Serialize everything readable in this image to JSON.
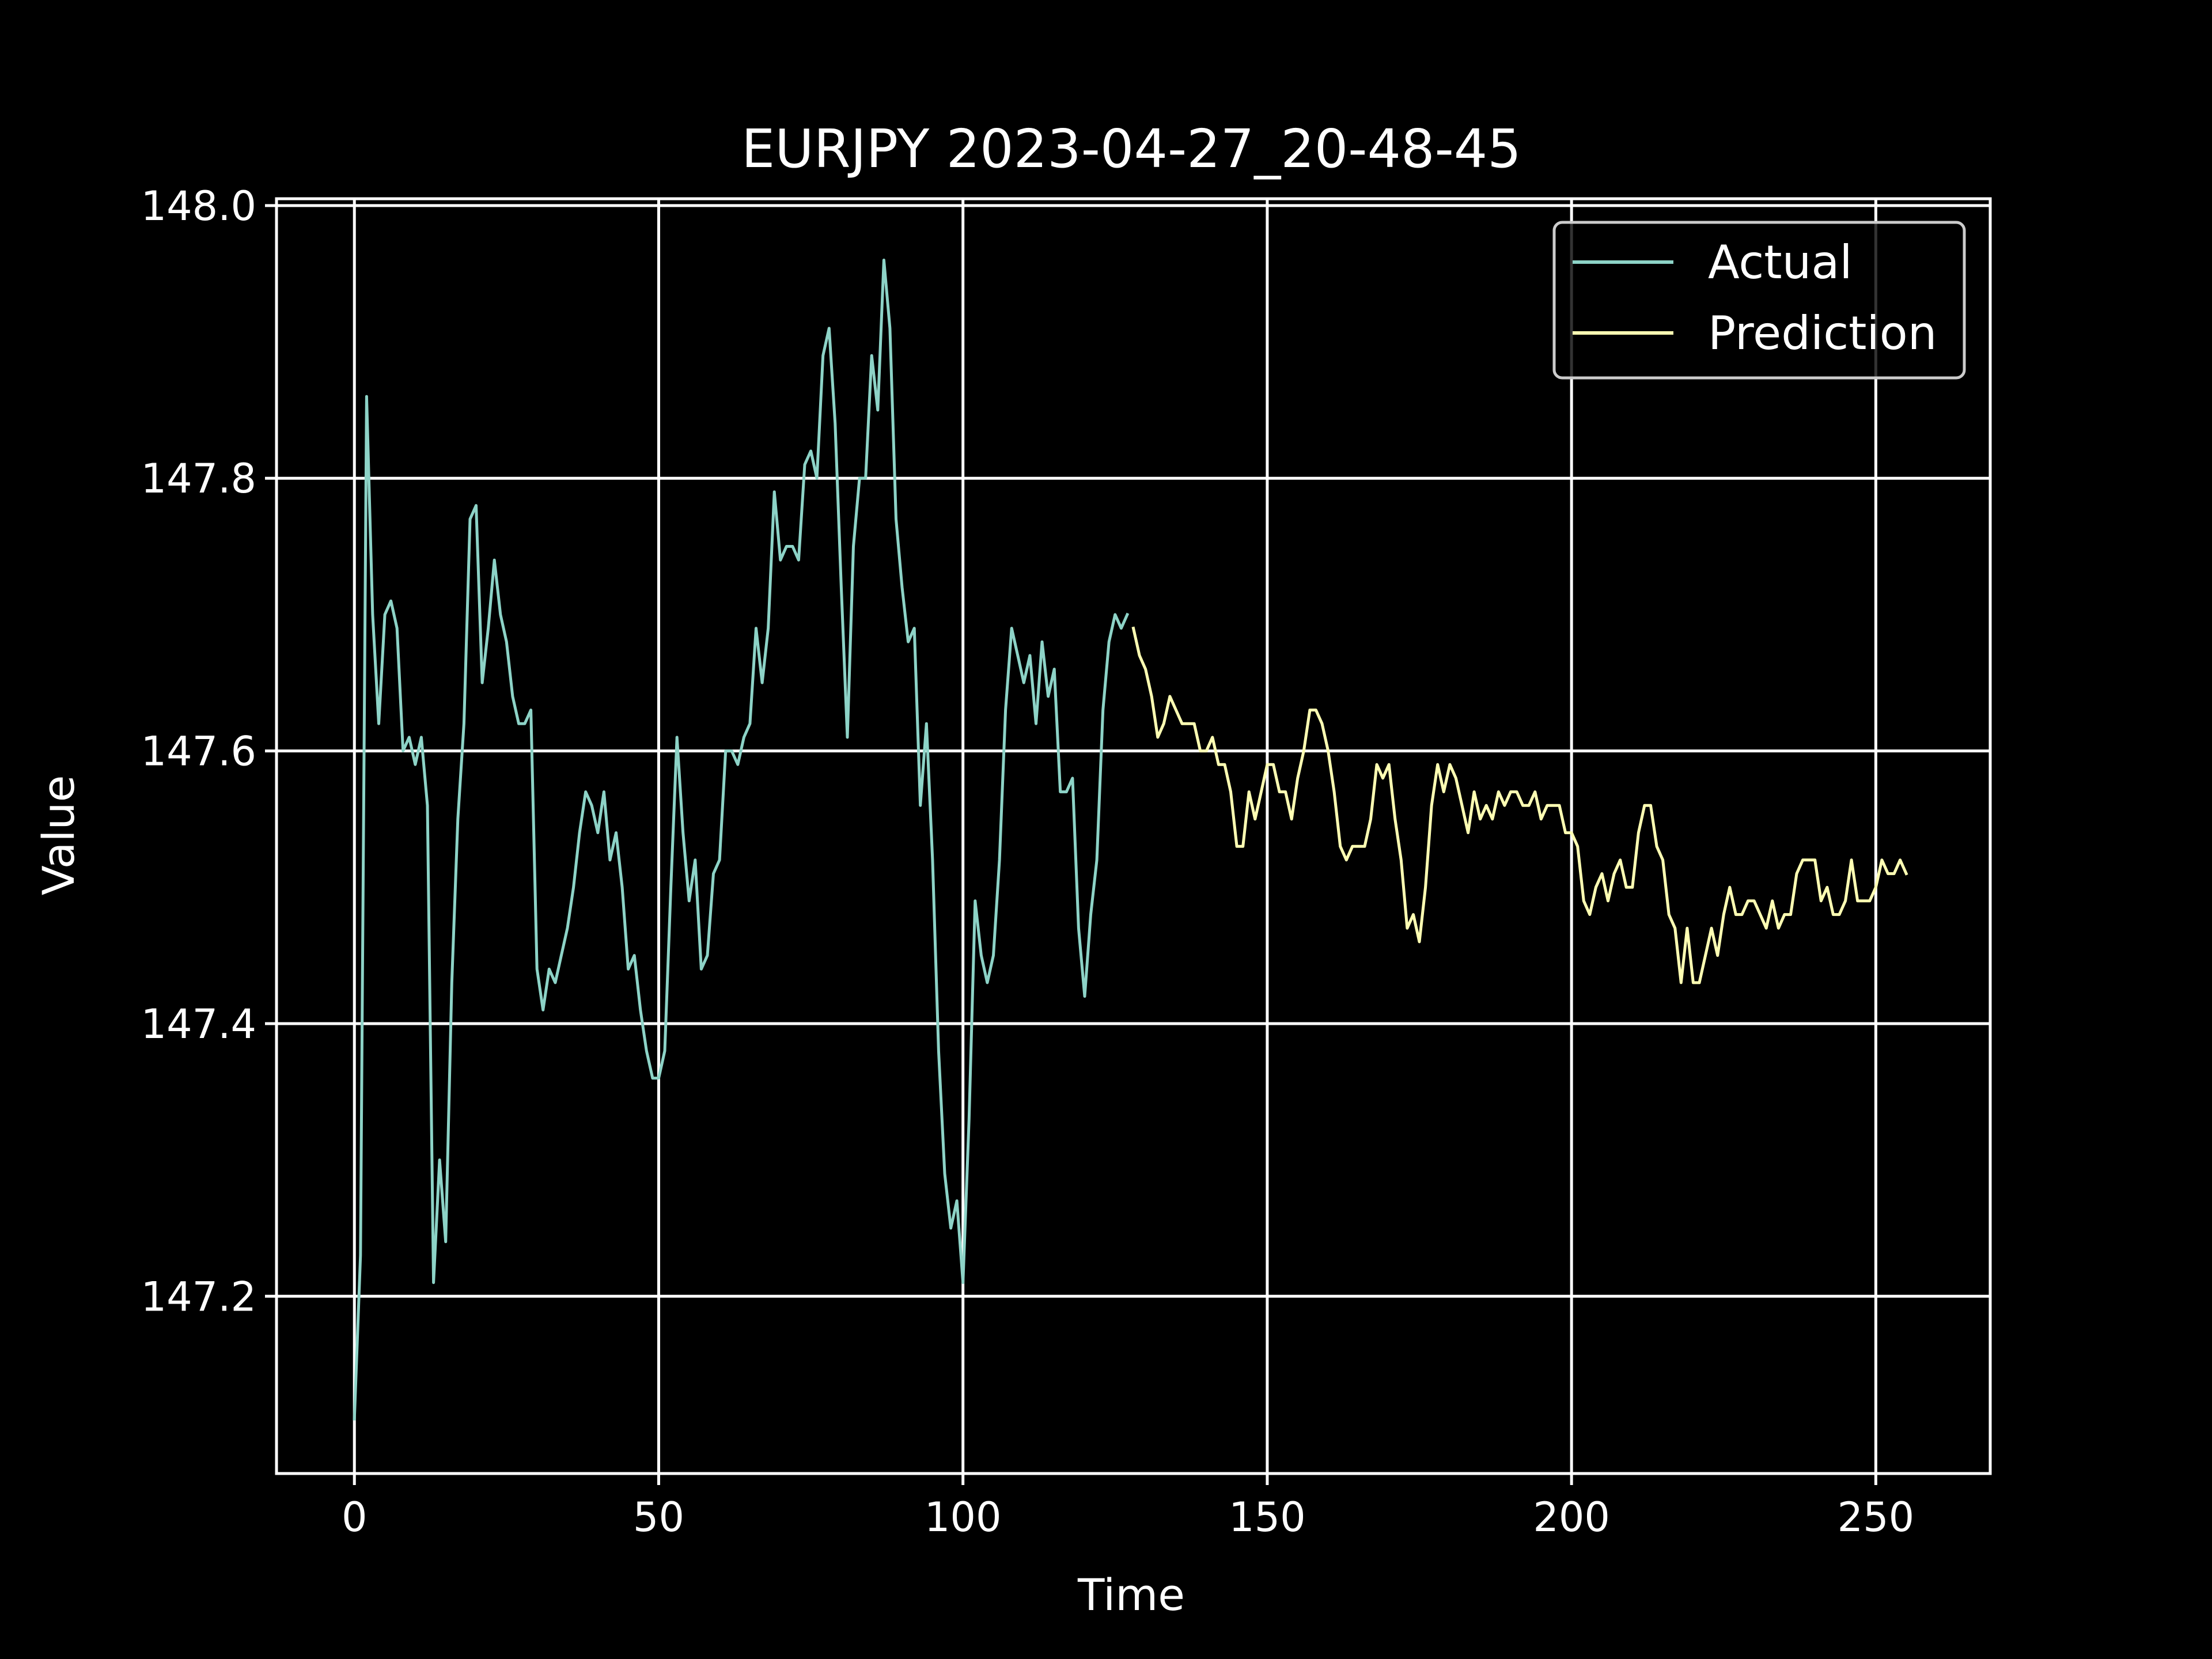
{
  "chart_data": {
    "type": "line",
    "title": "EURJPY 2023-04-27_20-48-45",
    "xlabel": "Time",
    "ylabel": "Value",
    "xlim": [
      -12.8,
      268.8
    ],
    "ylim": [
      147.07,
      148.005
    ],
    "xticks": [
      0,
      50,
      100,
      150,
      200,
      250
    ],
    "xtick_labels": [
      "0",
      "50",
      "100",
      "150",
      "200",
      "250"
    ],
    "yticks": [
      147.2,
      147.4,
      147.6,
      147.8,
      148.0
    ],
    "ytick_labels": [
      "147.2",
      "147.4",
      "147.6",
      "147.8",
      "148.0"
    ],
    "grid": true,
    "legend": "top-right",
    "colors": {
      "background": "#000000",
      "foreground": "#ffffff",
      "legend_background": "#000000",
      "legend_border": "#cccccc"
    },
    "series": [
      {
        "name": "Actual",
        "color": "#8dd3c7",
        "x_start": 0,
        "values": [
          147.11,
          147.23,
          147.86,
          147.7,
          147.62,
          147.7,
          147.71,
          147.69,
          147.6,
          147.61,
          147.59,
          147.61,
          147.56,
          147.21,
          147.3,
          147.24,
          147.43,
          147.55,
          147.62,
          147.77,
          147.78,
          147.65,
          147.69,
          147.74,
          147.7,
          147.68,
          147.64,
          147.62,
          147.62,
          147.63,
          147.44,
          147.41,
          147.44,
          147.43,
          147.45,
          147.47,
          147.5,
          147.54,
          147.57,
          147.56,
          147.54,
          147.57,
          147.52,
          147.54,
          147.5,
          147.44,
          147.45,
          147.41,
          147.38,
          147.36,
          147.36,
          147.38,
          147.5,
          147.61,
          147.54,
          147.49,
          147.52,
          147.44,
          147.45,
          147.51,
          147.52,
          147.6,
          147.6,
          147.59,
          147.61,
          147.62,
          147.69,
          147.65,
          147.69,
          147.79,
          147.74,
          147.75,
          147.75,
          147.74,
          147.81,
          147.82,
          147.8,
          147.89,
          147.91,
          147.84,
          147.72,
          147.61,
          147.75,
          147.8,
          147.8,
          147.89,
          147.85,
          147.96,
          147.91,
          147.77,
          147.72,
          147.68,
          147.69,
          147.56,
          147.62,
          147.52,
          147.38,
          147.29,
          147.25,
          147.27,
          147.21,
          147.33,
          147.49,
          147.45,
          147.43,
          147.45,
          147.52,
          147.63,
          147.69,
          147.67,
          147.65,
          147.67,
          147.62,
          147.68,
          147.64,
          147.66,
          147.57,
          147.57,
          147.58,
          147.47,
          147.42,
          147.48,
          147.52,
          147.63,
          147.68,
          147.7,
          147.69,
          147.7
        ]
      },
      {
        "name": "Prediction",
        "color": "#ffffb3",
        "x_start": 128,
        "values": [
          147.69,
          147.67,
          147.66,
          147.64,
          147.61,
          147.62,
          147.64,
          147.63,
          147.62,
          147.62,
          147.62,
          147.6,
          147.6,
          147.61,
          147.59,
          147.59,
          147.57,
          147.53,
          147.53,
          147.57,
          147.55,
          147.57,
          147.59,
          147.59,
          147.57,
          147.57,
          147.55,
          147.58,
          147.6,
          147.63,
          147.63,
          147.62,
          147.6,
          147.57,
          147.53,
          147.52,
          147.53,
          147.53,
          147.53,
          147.55,
          147.59,
          147.58,
          147.59,
          147.55,
          147.52,
          147.47,
          147.48,
          147.46,
          147.5,
          147.56,
          147.59,
          147.57,
          147.59,
          147.58,
          147.56,
          147.54,
          147.57,
          147.55,
          147.56,
          147.55,
          147.57,
          147.56,
          147.57,
          147.57,
          147.56,
          147.56,
          147.57,
          147.55,
          147.56,
          147.56,
          147.56,
          147.54,
          147.54,
          147.53,
          147.49,
          147.48,
          147.5,
          147.51,
          147.49,
          147.51,
          147.52,
          147.5,
          147.5,
          147.54,
          147.56,
          147.56,
          147.53,
          147.52,
          147.48,
          147.47,
          147.43,
          147.47,
          147.43,
          147.43,
          147.45,
          147.47,
          147.45,
          147.48,
          147.5,
          147.48,
          147.48,
          147.49,
          147.49,
          147.48,
          147.47,
          147.49,
          147.47,
          147.48,
          147.48,
          147.51,
          147.52,
          147.52,
          147.52,
          147.49,
          147.5,
          147.48,
          147.48,
          147.49,
          147.52,
          147.49,
          147.49,
          147.49,
          147.5,
          147.52,
          147.51,
          147.51,
          147.52,
          147.51
        ]
      }
    ]
  }
}
